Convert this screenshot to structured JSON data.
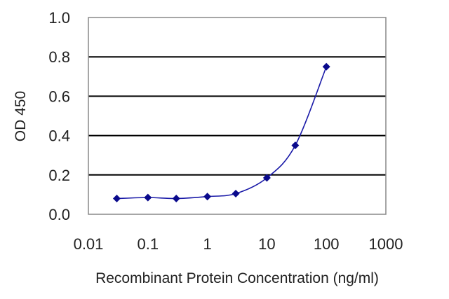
{
  "chart_data": {
    "type": "line",
    "title": "",
    "xlabel": "Recombinant Protein Concentration (ng/ml)",
    "ylabel": "OD 450",
    "xscale": "log",
    "xlim": [
      0.01,
      1000
    ],
    "ylim": [
      0.0,
      1.0
    ],
    "xticks": [
      "0.01",
      "0.1",
      "1",
      "10",
      "100",
      "1000"
    ],
    "yticks": [
      "0.0",
      "0.2",
      "0.4",
      "0.6",
      "0.8",
      "1.0"
    ],
    "grid": "horizontal",
    "legend": "none",
    "series": [
      {
        "x": [
          0.03,
          0.1,
          0.3,
          1,
          3,
          10,
          30,
          100
        ],
        "y": [
          0.08,
          0.085,
          0.08,
          0.09,
          0.105,
          0.185,
          0.35,
          0.75
        ]
      }
    ],
    "colors": {
      "line": "#1a1aa8",
      "marker": "#0a0a8c",
      "grid": "#000000"
    }
  }
}
